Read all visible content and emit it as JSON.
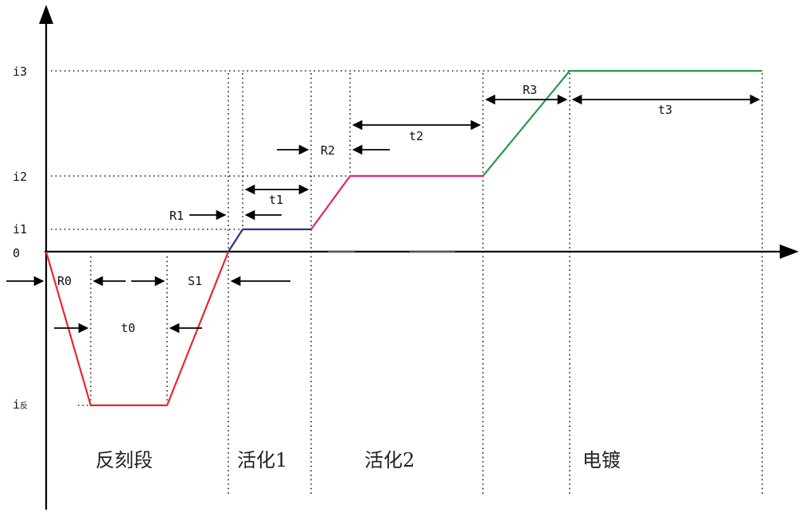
{
  "y_labels": {
    "i3": "i3",
    "i2": "i2",
    "i1": "i1",
    "zero": "0",
    "i_rev_main": "i",
    "i_rev_sub": "反"
  },
  "timing_labels": {
    "r0": "R0",
    "t0": "t0",
    "s1": "S1",
    "r1": "R1",
    "t1": "t1",
    "r2": "R2",
    "t2": "t2",
    "r3": "R3",
    "t3": "t3"
  },
  "stages": {
    "reverse_etch": "反刻段",
    "activation1": "活化1",
    "activation2": "活化2",
    "plating": "电镀"
  },
  "colors": {
    "reverse": "#e8262b",
    "activation1": "#3a2a8c",
    "activation2": "#e0246e",
    "plating": "#2a9a4a"
  }
}
